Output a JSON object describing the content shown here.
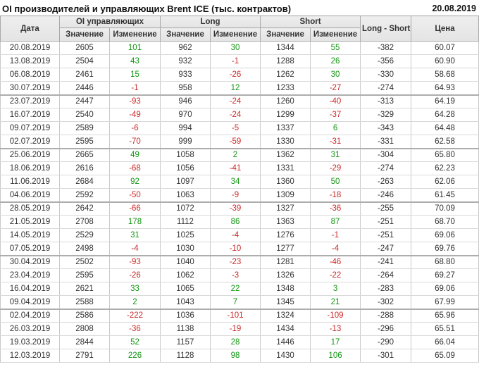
{
  "page": {
    "title": "OI производителей и управляющих Brent ICE (тыс. контрактов)",
    "report_date": "20.08.2019"
  },
  "colors": {
    "positive_change": "#129612",
    "negative_change": "#cc2a2a",
    "text": "#333333",
    "header_bg": "#e8e8e8",
    "outer_border": "#9e9e9e"
  },
  "table": {
    "headers": {
      "date": "Дата",
      "oi_group": "OI управляющих",
      "long_group": "Long",
      "short_group": "Short",
      "value": "Значение",
      "change": "Изменение",
      "long_short": "Long - Short",
      "price": "Цена"
    },
    "rows": [
      {
        "date": "20.08.2019",
        "oi": 2605,
        "oi_chg": 101,
        "long": 962,
        "long_chg": 30,
        "short": 1344,
        "short_chg": 55,
        "long_short": -382,
        "price": "60.07"
      },
      {
        "date": "13.08.2019",
        "oi": 2504,
        "oi_chg": 43,
        "long": 932,
        "long_chg": -1,
        "short": 1288,
        "short_chg": 26,
        "long_short": -356,
        "price": "60.90"
      },
      {
        "date": "06.08.2019",
        "oi": 2461,
        "oi_chg": 15,
        "long": 933,
        "long_chg": -26,
        "short": 1262,
        "short_chg": 30,
        "long_short": -330,
        "price": "58.68"
      },
      {
        "date": "30.07.2019",
        "oi": 2446,
        "oi_chg": -1,
        "long": 958,
        "long_chg": 12,
        "short": 1233,
        "short_chg": -27,
        "long_short": -274,
        "price": "64.93"
      },
      {
        "date": "23.07.2019",
        "oi": 2447,
        "oi_chg": -93,
        "long": 946,
        "long_chg": -24,
        "short": 1260,
        "short_chg": -40,
        "long_short": -313,
        "price": "64.19"
      },
      {
        "date": "16.07.2019",
        "oi": 2540,
        "oi_chg": -49,
        "long": 970,
        "long_chg": -24,
        "short": 1299,
        "short_chg": -37,
        "long_short": -329,
        "price": "64.28"
      },
      {
        "date": "09.07.2019",
        "oi": 2589,
        "oi_chg": -6,
        "long": 994,
        "long_chg": -5,
        "short": 1337,
        "short_chg": 6,
        "long_short": -343,
        "price": "64.48"
      },
      {
        "date": "02.07.2019",
        "oi": 2595,
        "oi_chg": -70,
        "long": 999,
        "long_chg": -59,
        "short": 1330,
        "short_chg": -31,
        "long_short": -331,
        "price": "62.58"
      },
      {
        "date": "25.06.2019",
        "oi": 2665,
        "oi_chg": 49,
        "long": 1058,
        "long_chg": 2,
        "short": 1362,
        "short_chg": 31,
        "long_short": -304,
        "price": "65.80"
      },
      {
        "date": "18.06.2019",
        "oi": 2616,
        "oi_chg": -68,
        "long": 1056,
        "long_chg": -41,
        "short": 1331,
        "short_chg": -29,
        "long_short": -274,
        "price": "62.23"
      },
      {
        "date": "11.06.2019",
        "oi": 2684,
        "oi_chg": 92,
        "long": 1097,
        "long_chg": 34,
        "short": 1360,
        "short_chg": 50,
        "long_short": -263,
        "price": "62.06"
      },
      {
        "date": "04.06.2019",
        "oi": 2592,
        "oi_chg": -50,
        "long": 1063,
        "long_chg": -9,
        "short": 1309,
        "short_chg": -18,
        "long_short": -246,
        "price": "61.45"
      },
      {
        "date": "28.05.2019",
        "oi": 2642,
        "oi_chg": -66,
        "long": 1072,
        "long_chg": -39,
        "short": 1327,
        "short_chg": -36,
        "long_short": -255,
        "price": "70.09"
      },
      {
        "date": "21.05.2019",
        "oi": 2708,
        "oi_chg": 178,
        "long": 1112,
        "long_chg": 86,
        "short": 1363,
        "short_chg": 87,
        "long_short": -251,
        "price": "68.70"
      },
      {
        "date": "14.05.2019",
        "oi": 2529,
        "oi_chg": 31,
        "long": 1025,
        "long_chg": -4,
        "short": 1276,
        "short_chg": -1,
        "long_short": -251,
        "price": "69.06"
      },
      {
        "date": "07.05.2019",
        "oi": 2498,
        "oi_chg": -4,
        "long": 1030,
        "long_chg": -10,
        "short": 1277,
        "short_chg": -4,
        "long_short": -247,
        "price": "69.76"
      },
      {
        "date": "30.04.2019",
        "oi": 2502,
        "oi_chg": -93,
        "long": 1040,
        "long_chg": -23,
        "short": 1281,
        "short_chg": -46,
        "long_short": -241,
        "price": "68.80"
      },
      {
        "date": "23.04.2019",
        "oi": 2595,
        "oi_chg": -26,
        "long": 1062,
        "long_chg": -3,
        "short": 1326,
        "short_chg": -22,
        "long_short": -264,
        "price": "69.27"
      },
      {
        "date": "16.04.2019",
        "oi": 2621,
        "oi_chg": 33,
        "long": 1065,
        "long_chg": 22,
        "short": 1348,
        "short_chg": 3,
        "long_short": -283,
        "price": "69.06"
      },
      {
        "date": "09.04.2019",
        "oi": 2588,
        "oi_chg": 2,
        "long": 1043,
        "long_chg": 7,
        "short": 1345,
        "short_chg": 21,
        "long_short": -302,
        "price": "67.99"
      },
      {
        "date": "02.04.2019",
        "oi": 2586,
        "oi_chg": -222,
        "long": 1036,
        "long_chg": -101,
        "short": 1324,
        "short_chg": -109,
        "long_short": -288,
        "price": "65.96"
      },
      {
        "date": "26.03.2019",
        "oi": 2808,
        "oi_chg": -36,
        "long": 1138,
        "long_chg": -19,
        "short": 1434,
        "short_chg": -13,
        "long_short": -296,
        "price": "65.51"
      },
      {
        "date": "19.03.2019",
        "oi": 2844,
        "oi_chg": 52,
        "long": 1157,
        "long_chg": 28,
        "short": 1446,
        "short_chg": 17,
        "long_short": -290,
        "price": "66.04"
      },
      {
        "date": "12.03.2019",
        "oi": 2791,
        "oi_chg": 226,
        "long": 1128,
        "long_chg": 98,
        "short": 1430,
        "short_chg": 106,
        "long_short": -301,
        "price": "65.09"
      }
    ]
  }
}
